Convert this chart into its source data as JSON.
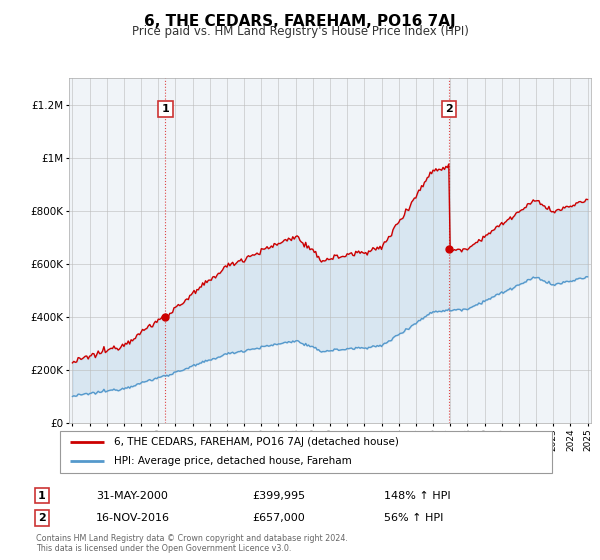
{
  "title": "6, THE CEDARS, FAREHAM, PO16 7AJ",
  "subtitle": "Price paid vs. HM Land Registry's House Price Index (HPI)",
  "sale1_price": 399995,
  "sale1_display": "31-MAY-2000",
  "sale2_price": 657000,
  "sale2_display": "16-NOV-2016",
  "red_color": "#cc0000",
  "blue_color": "#5599cc",
  "fill_color": "#ddeeff",
  "dashed_color": "#dd4444",
  "legend_label_red": "6, THE CEDARS, FAREHAM, PO16 7AJ (detached house)",
  "legend_label_blue": "HPI: Average price, detached house, Fareham",
  "footer": "Contains HM Land Registry data © Crown copyright and database right 2024.\nThis data is licensed under the Open Government Licence v3.0.",
  "ylim": [
    0,
    1300000
  ],
  "yticks": [
    0,
    200000,
    400000,
    600000,
    800000,
    1000000,
    1200000
  ],
  "background_color": "#ffffff",
  "chart_bg": "#f0f4f8"
}
